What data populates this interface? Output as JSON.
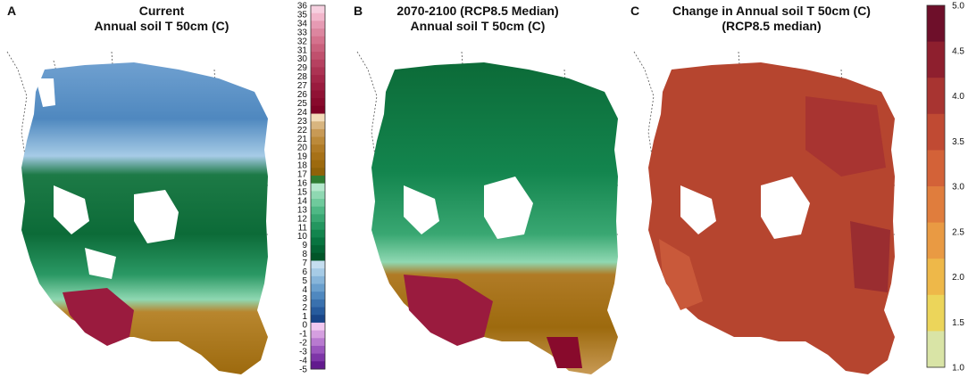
{
  "panels": [
    {
      "letter": "A",
      "title_line1": "Current",
      "title_line2": "Annual soil T 50cm (C)"
    },
    {
      "letter": "B",
      "title_line1": "2070-2100 (RCP8.5 Median)",
      "title_line2": "Annual soil T 50cm (C)"
    },
    {
      "letter": "C",
      "title_line1": "Change in Annual soil T 50cm (C)",
      "title_line2": "(RCP8.5 median)"
    }
  ],
  "colorbar_temperature": {
    "ticks": [
      "36",
      "35",
      "34",
      "33",
      "32",
      "31",
      "30",
      "29",
      "28",
      "27",
      "26",
      "25",
      "24",
      "23",
      "22",
      "21",
      "20",
      "19",
      "18",
      "17",
      "16",
      "15",
      "14",
      "13",
      "12",
      "11",
      "10",
      "9",
      "8",
      "7",
      "6",
      "5",
      "4",
      "3",
      "2",
      "1",
      "0",
      "-1",
      "-2",
      "-3",
      "-4",
      "-5"
    ],
    "colors": [
      "#f7d0e0",
      "#f2b6cb",
      "#e69ab3",
      "#dc869f",
      "#d4728d",
      "#c9607c",
      "#c0506d",
      "#b64160",
      "#ac3353",
      "#a32648",
      "#9a1b3e",
      "#901234",
      "#880a2c",
      "#7f0325",
      "#f3dcb8",
      "#d8b57f",
      "#c89a55",
      "#bc8a3a",
      "#b07b26",
      "#a77118",
      "#9d6a0e",
      "#8f6208",
      "#2e7d32",
      "#b4e8cc",
      "#8fd8b2",
      "#6fca9c",
      "#4fb885",
      "#39a772",
      "#23965f",
      "#13854e",
      "#087440",
      "#036434",
      "#015528",
      "#c5def0",
      "#a6cbe6",
      "#87b5da",
      "#6a9fcd",
      "#4f88bf",
      "#3a71ae",
      "#275b9d",
      "#194588",
      "#f2c8f0",
      "#d59fe0",
      "#b87ad0",
      "#9a55bd",
      "#7d35a7",
      "#621a8e"
    ]
  },
  "colorbar_change": {
    "ticks": [
      "5.0",
      "4.5",
      "4.0",
      "3.5",
      "3.0",
      "2.5",
      "2.0",
      "1.5",
      "1.0"
    ],
    "colors": [
      "#6e0f2a",
      "#8e1f2e",
      "#a83431",
      "#c04a33",
      "#d36238",
      "#e07d3d",
      "#e99a43",
      "#eeb849",
      "#ecd55a",
      "#d9e4a6"
    ]
  }
}
